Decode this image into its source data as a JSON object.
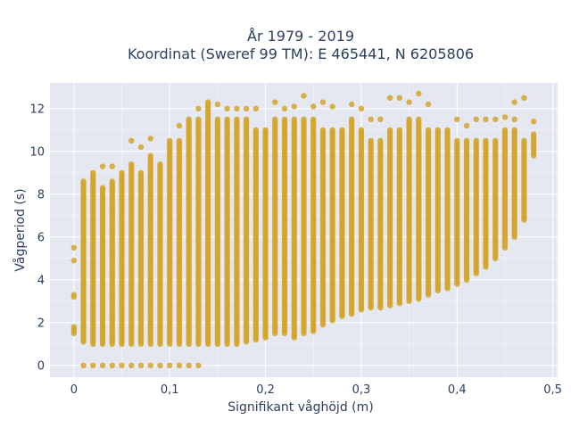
{
  "chart_data": {
    "type": "scatter",
    "title_line1": "År 1979 - 2019",
    "title_line2": "Koordinat (Sweref 99 TM): E 465441, N 6205806",
    "xlabel": "Signifikant våghöjd (m)",
    "ylabel": "Vågperiod (s)",
    "xlim": [
      -0.025,
      0.505
    ],
    "ylim": [
      -0.55,
      13.2
    ],
    "x_ticks": [
      0,
      0.1,
      0.2,
      0.3,
      0.4,
      0.5
    ],
    "x_tick_labels": [
      "0",
      "0,1",
      "0,2",
      "0,3",
      "0,4",
      "0,5"
    ],
    "y_ticks": [
      0,
      2,
      4,
      6,
      8,
      10,
      12
    ],
    "y_tick_labels": [
      "0",
      "2",
      "4",
      "6",
      "8",
      "10",
      "12"
    ],
    "grid": true,
    "legend": "none",
    "point_step_x": 0.01,
    "point_step_y": 0.1,
    "series": [
      {
        "columns": [
          {
            "x": 0.0,
            "ymin": 1.5,
            "ymax": 1.8,
            "extra": [
              3.2,
              3.3,
              4.9,
              5.5
            ]
          },
          {
            "x": 0.01,
            "ymin": 1.1,
            "ymax": 8.6,
            "extra": [
              0
            ]
          },
          {
            "x": 0.02,
            "ymin": 1.0,
            "ymax": 9.0,
            "extra": [
              0
            ]
          },
          {
            "x": 0.03,
            "ymin": 1.0,
            "ymax": 8.3,
            "extra": [
              0,
              9.3
            ]
          },
          {
            "x": 0.04,
            "ymin": 1.0,
            "ymax": 8.6,
            "extra": [
              0,
              9.3
            ]
          },
          {
            "x": 0.05,
            "ymin": 1.0,
            "ymax": 9.0,
            "extra": [
              0
            ]
          },
          {
            "x": 0.06,
            "ymin": 1.0,
            "ymax": 9.4,
            "extra": [
              0,
              10.5
            ]
          },
          {
            "x": 0.07,
            "ymin": 1.0,
            "ymax": 9.0,
            "extra": [
              0,
              10.2
            ]
          },
          {
            "x": 0.08,
            "ymin": 1.0,
            "ymax": 9.8,
            "extra": [
              0,
              10.6
            ]
          },
          {
            "x": 0.09,
            "ymin": 1.0,
            "ymax": 9.4,
            "extra": [
              0
            ]
          },
          {
            "x": 0.1,
            "ymin": 1.0,
            "ymax": 10.5,
            "extra": [
              0
            ]
          },
          {
            "x": 0.11,
            "ymin": 1.0,
            "ymax": 10.5,
            "extra": [
              0,
              11.2
            ]
          },
          {
            "x": 0.12,
            "ymin": 1.0,
            "ymax": 11.5,
            "extra": [
              0
            ]
          },
          {
            "x": 0.13,
            "ymin": 1.0,
            "ymax": 11.5,
            "extra": [
              0,
              12.0
            ]
          },
          {
            "x": 0.14,
            "ymin": 1.0,
            "ymax": 12.3,
            "extra": []
          },
          {
            "x": 0.15,
            "ymin": 1.0,
            "ymax": 11.5,
            "extra": [
              12.2
            ]
          },
          {
            "x": 0.16,
            "ymin": 1.0,
            "ymax": 11.5,
            "extra": [
              12.0
            ]
          },
          {
            "x": 0.17,
            "ymin": 1.0,
            "ymax": 11.5,
            "extra": [
              12.0
            ]
          },
          {
            "x": 0.18,
            "ymin": 1.1,
            "ymax": 11.5,
            "extra": [
              12.0
            ]
          },
          {
            "x": 0.19,
            "ymin": 1.2,
            "ymax": 11.0,
            "extra": [
              12.0
            ]
          },
          {
            "x": 0.2,
            "ymin": 1.3,
            "ymax": 11.0,
            "extra": []
          },
          {
            "x": 0.21,
            "ymin": 1.5,
            "ymax": 11.5,
            "extra": [
              12.3
            ]
          },
          {
            "x": 0.22,
            "ymin": 1.5,
            "ymax": 11.5,
            "extra": [
              12.0
            ]
          },
          {
            "x": 0.23,
            "ymin": 1.3,
            "ymax": 11.5,
            "extra": [
              12.1
            ]
          },
          {
            "x": 0.24,
            "ymin": 1.5,
            "ymax": 11.5,
            "extra": [
              12.6
            ]
          },
          {
            "x": 0.25,
            "ymin": 1.6,
            "ymax": 11.5,
            "extra": [
              12.1
            ]
          },
          {
            "x": 0.26,
            "ymin": 1.9,
            "ymax": 11.0,
            "extra": [
              12.3
            ]
          },
          {
            "x": 0.27,
            "ymin": 2.1,
            "ymax": 11.0,
            "extra": [
              12.1
            ]
          },
          {
            "x": 0.28,
            "ymin": 2.3,
            "ymax": 11.0,
            "extra": []
          },
          {
            "x": 0.29,
            "ymin": 2.4,
            "ymax": 11.5,
            "extra": [
              12.2
            ]
          },
          {
            "x": 0.3,
            "ymin": 2.6,
            "ymax": 11.0,
            "extra": [
              12.0
            ]
          },
          {
            "x": 0.31,
            "ymin": 2.7,
            "ymax": 10.5,
            "extra": [
              11.5
            ]
          },
          {
            "x": 0.32,
            "ymin": 2.7,
            "ymax": 10.5,
            "extra": [
              11.5
            ]
          },
          {
            "x": 0.33,
            "ymin": 2.8,
            "ymax": 11.0,
            "extra": [
              12.5
            ]
          },
          {
            "x": 0.34,
            "ymin": 2.9,
            "ymax": 11.0,
            "extra": [
              12.5
            ]
          },
          {
            "x": 0.35,
            "ymin": 3.0,
            "ymax": 11.5,
            "extra": [
              12.3
            ]
          },
          {
            "x": 0.36,
            "ymin": 3.1,
            "ymax": 11.5,
            "extra": [
              12.7
            ]
          },
          {
            "x": 0.37,
            "ymin": 3.3,
            "ymax": 11.0,
            "extra": [
              12.2
            ]
          },
          {
            "x": 0.38,
            "ymin": 3.5,
            "ymax": 11.0,
            "extra": []
          },
          {
            "x": 0.39,
            "ymin": 3.6,
            "ymax": 11.0,
            "extra": []
          },
          {
            "x": 0.4,
            "ymin": 3.8,
            "ymax": 10.5,
            "extra": [
              11.5
            ]
          },
          {
            "x": 0.41,
            "ymin": 4.0,
            "ymax": 10.5,
            "extra": [
              11.2
            ]
          },
          {
            "x": 0.42,
            "ymin": 4.3,
            "ymax": 10.5,
            "extra": [
              11.5
            ]
          },
          {
            "x": 0.43,
            "ymin": 4.6,
            "ymax": 10.5,
            "extra": [
              11.5
            ]
          },
          {
            "x": 0.44,
            "ymin": 5.0,
            "ymax": 10.5,
            "extra": [
              11.5
            ]
          },
          {
            "x": 0.45,
            "ymin": 5.5,
            "ymax": 11.0,
            "extra": [
              11.6
            ]
          },
          {
            "x": 0.46,
            "ymin": 6.0,
            "ymax": 11.0,
            "extra": [
              12.3,
              11.5
            ]
          },
          {
            "x": 0.47,
            "ymin": 6.8,
            "ymax": 10.5,
            "extra": [
              12.5
            ]
          },
          {
            "x": 0.48,
            "ymin": 9.8,
            "ymax": 10.8,
            "extra": [
              11.4
            ]
          }
        ]
      }
    ]
  },
  "colors": {
    "point": "#d4a52a",
    "plot_bg": "#e5e8f0",
    "grid": "#ffffff",
    "text": "#2a3f5f"
  }
}
